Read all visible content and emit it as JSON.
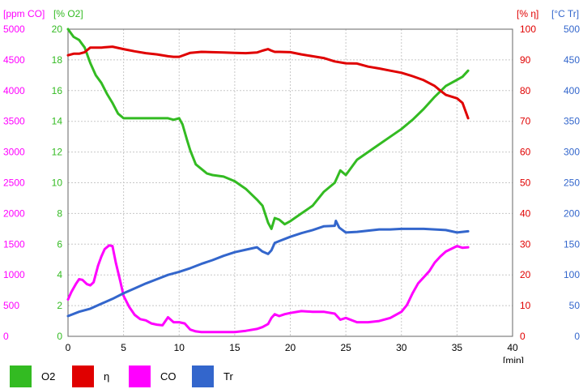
{
  "chart_data": {
    "type": "line",
    "xlabel": "[min]",
    "x_ticks": [
      "0",
      "5",
      "10",
      "15",
      "20",
      "25",
      "30",
      "35",
      "40"
    ],
    "xlim": [
      0,
      40
    ],
    "grid": true,
    "legend_position": "bottom",
    "axes": {
      "co": {
        "label": "[ppm CO]",
        "color": "#ff00ff",
        "side": "left-outer",
        "lim": [
          0,
          5000
        ],
        "ticks": [
          "0",
          "500",
          "1000",
          "1500",
          "2000",
          "2500",
          "3000",
          "3500",
          "4000",
          "4500",
          "5000"
        ]
      },
      "o2": {
        "label": "[% O2]",
        "color": "#33bb22",
        "side": "left-inner",
        "lim": [
          0,
          20
        ],
        "ticks": [
          "0",
          "2",
          "4",
          "6",
          "8",
          "10",
          "12",
          "14",
          "16",
          "18",
          "20"
        ]
      },
      "eta": {
        "label": "[% η]",
        "color": "#e00000",
        "side": "right-inner",
        "lim": [
          0,
          100
        ],
        "ticks": [
          "0",
          "10",
          "20",
          "30",
          "40",
          "50",
          "60",
          "70",
          "80",
          "90",
          "100"
        ]
      },
      "tr": {
        "label": "[°C Tr]",
        "color": "#3366cc",
        "side": "right-outer",
        "lim": [
          0,
          500
        ],
        "ticks": [
          "0",
          "50",
          "100",
          "150",
          "200",
          "250",
          "300",
          "350",
          "400",
          "450",
          "500"
        ]
      }
    },
    "series": [
      {
        "name": "O2",
        "axis": "o2",
        "color": "#33bb22",
        "x": [
          0,
          0.5,
          1,
          1.5,
          2,
          2.5,
          3,
          3.5,
          4,
          4.5,
          5,
          5.5,
          6,
          7,
          8,
          9,
          9.5,
          10,
          10.3,
          10.7,
          11,
          11.5,
          12,
          12.5,
          13,
          14,
          15,
          16,
          17,
          17.5,
          18,
          18.3,
          18.6,
          19,
          19.5,
          20,
          21,
          22,
          23,
          24,
          24.5,
          25,
          26,
          27,
          28,
          29,
          30,
          31,
          32,
          33,
          34,
          35,
          35.5,
          36
        ],
        "y": [
          20,
          19.5,
          19.3,
          18.8,
          17.8,
          17.0,
          16.5,
          15.8,
          15.2,
          14.5,
          14.2,
          14.2,
          14.2,
          14.2,
          14.2,
          14.2,
          14.1,
          14.2,
          13.8,
          12.8,
          12.1,
          11.2,
          10.9,
          10.6,
          10.5,
          10.4,
          10.1,
          9.6,
          8.9,
          8.5,
          7.4,
          7.0,
          7.7,
          7.6,
          7.3,
          7.5,
          8.0,
          8.5,
          9.4,
          10.0,
          10.8,
          10.5,
          11.5,
          12.0,
          12.5,
          13.0,
          13.5,
          14.1,
          14.8,
          15.6,
          16.3,
          16.7,
          16.9,
          17.3
        ]
      },
      {
        "name": "η",
        "axis": "eta",
        "color": "#e00000",
        "x": [
          0,
          0.5,
          1,
          1.5,
          2,
          2.5,
          3,
          4,
          5,
          6,
          7,
          8,
          9,
          9.5,
          10,
          11,
          12,
          13,
          14,
          15,
          16,
          17,
          17.5,
          18,
          18.3,
          18.6,
          19,
          20,
          21,
          22,
          23,
          24,
          25,
          26,
          27,
          28,
          29,
          30,
          31,
          32,
          33,
          33.5,
          34,
          35,
          35.5,
          36
        ],
        "y": [
          91.5,
          92,
          92,
          92.5,
          94,
          94,
          94,
          94.3,
          93.5,
          92.8,
          92.2,
          91.8,
          91.2,
          91,
          91,
          92.3,
          92.6,
          92.5,
          92.4,
          92.3,
          92.2,
          92.4,
          93,
          93.5,
          93,
          92.6,
          92.6,
          92.5,
          91.8,
          91.2,
          90.6,
          89.5,
          88.9,
          88.8,
          87.8,
          87.2,
          86.5,
          85.8,
          84.7,
          83.4,
          81.5,
          80,
          78.6,
          77.5,
          76,
          71
        ]
      },
      {
        "name": "CO",
        "axis": "co",
        "color": "#ff00ff",
        "x": [
          0,
          0.3,
          0.7,
          1,
          1.3,
          1.7,
          2,
          2.3,
          2.7,
          3,
          3.3,
          3.7,
          4,
          4.3,
          4.7,
          5,
          5.5,
          6,
          6.5,
          7,
          7.5,
          8,
          8.5,
          9,
          9.5,
          10,
          10.5,
          11,
          11.5,
          12,
          13,
          14,
          15,
          16,
          17,
          17.5,
          18,
          18.3,
          18.6,
          19,
          19.5,
          20,
          21,
          22,
          23,
          24,
          24.5,
          25,
          26,
          27,
          28,
          29,
          30,
          30.5,
          31,
          31.5,
          32,
          32.5,
          33,
          33.5,
          34,
          35,
          35.5,
          36
        ],
        "y": [
          600,
          720,
          850,
          930,
          920,
          850,
          830,
          880,
          1150,
          1300,
          1420,
          1480,
          1470,
          1200,
          900,
          660,
          480,
          350,
          280,
          260,
          210,
          190,
          180,
          310,
          230,
          230,
          210,
          110,
          80,
          70,
          70,
          70,
          70,
          90,
          120,
          150,
          200,
          300,
          360,
          330,
          360,
          380,
          410,
          400,
          400,
          370,
          270,
          300,
          230,
          230,
          250,
          300,
          400,
          510,
          700,
          860,
          960,
          1060,
          1200,
          1300,
          1380,
          1470,
          1440,
          1450
        ]
      },
      {
        "name": "Tr",
        "axis": "tr",
        "color": "#3366cc",
        "x": [
          0,
          1,
          2,
          3,
          4,
          5,
          6,
          7,
          8,
          9,
          10,
          11,
          12,
          13,
          14,
          15,
          16,
          17,
          17.5,
          18,
          18.3,
          18.6,
          19,
          20,
          21,
          22,
          23,
          24,
          24.1,
          24.4,
          25,
          26,
          27,
          28,
          29,
          30,
          31,
          32,
          33,
          34,
          35,
          36
        ],
        "y": [
          33,
          40,
          45,
          53,
          61,
          70,
          78,
          86,
          93,
          100,
          105,
          111,
          118,
          124,
          131,
          137,
          141,
          145,
          138,
          134,
          140,
          152,
          155,
          162,
          168,
          173,
          179,
          180,
          188,
          177,
          169,
          170,
          172,
          174,
          174,
          175,
          175,
          175,
          174,
          173,
          169,
          171
        ]
      }
    ]
  },
  "legend": {
    "o2": {
      "label": "O2",
      "color": "#33bb22"
    },
    "eta": {
      "label": "η",
      "color": "#e00000"
    },
    "co": {
      "label": "CO",
      "color": "#ff00ff"
    },
    "tr": {
      "label": "Tr",
      "color": "#3366cc"
    }
  }
}
